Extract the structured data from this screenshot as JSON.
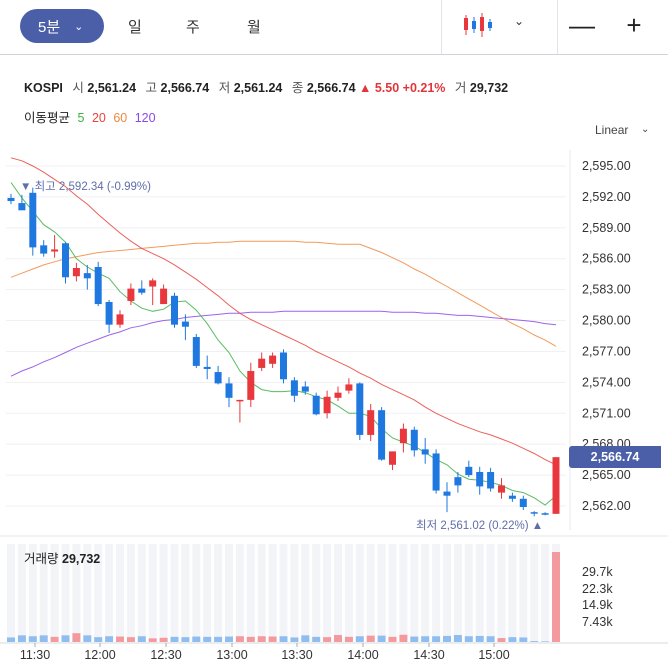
{
  "toolbar": {
    "interval_label": "5분",
    "tabs": [
      "일",
      "주",
      "월"
    ],
    "chart_type_icon": "candlestick-icon",
    "minus_label": "—",
    "plus_label": "+"
  },
  "quote": {
    "symbol": "KOSPI",
    "open_label": "시",
    "open": "2,561.24",
    "high_label": "고",
    "high": "2,566.74",
    "low_label": "저",
    "low": "2,561.24",
    "close_label": "종",
    "close": "2,566.74",
    "change": "▲ 5.50 +0.21%",
    "volume_label": "거",
    "volume": "29,732"
  },
  "moving_average": {
    "label": "이동평균",
    "periods": [
      {
        "period": "5",
        "color": "#3cb043"
      },
      {
        "period": "20",
        "color": "#e8453c"
      },
      {
        "period": "60",
        "color": "#f0883e"
      },
      {
        "period": "120",
        "color": "#8b48e8"
      }
    ]
  },
  "scale_label": "Linear",
  "annotations": {
    "high": "최고 2,592.34 (-0.99%)",
    "low": "최저 2,561.02 (0.22%)"
  },
  "current_price_tag": "2,566.74",
  "volume_panel": {
    "label": "거래량",
    "value": "29,732"
  },
  "colors": {
    "up": "#e8383d",
    "down": "#1f78e0",
    "accent": "#4b5fa8"
  },
  "chart_data": {
    "type": "candlestick",
    "y_ticks": [
      "2,595.00",
      "2,592.00",
      "2,589.00",
      "2,586.00",
      "2,583.00",
      "2,580.00",
      "2,577.00",
      "2,574.00",
      "2,571.00",
      "2,568.00",
      "2,565.00",
      "2,562.00"
    ],
    "x_ticks": [
      "11:30",
      "12:00",
      "12:30",
      "13:00",
      "13:30",
      "14:00",
      "14:30",
      "15:00"
    ],
    "ylim": [
      2560.9,
      2596.5
    ],
    "volume_ticks": [
      "29.7k",
      "22.3k",
      "14.9k",
      "7.43k"
    ],
    "candles": [
      {
        "o": 2591.9,
        "h": 2592.3,
        "l": 2591.3,
        "c": 2591.6
      },
      {
        "o": 2591.4,
        "h": 2592.2,
        "l": 2590.8,
        "c": 2590.7
      },
      {
        "o": 2592.4,
        "h": 2592.9,
        "l": 2586.3,
        "c": 2587.1
      },
      {
        "o": 2587.3,
        "h": 2587.8,
        "l": 2586.2,
        "c": 2586.5
      },
      {
        "o": 2586.7,
        "h": 2588.3,
        "l": 2586.1,
        "c": 2586.9
      },
      {
        "o": 2587.5,
        "h": 2587.6,
        "l": 2583.6,
        "c": 2584.2
      },
      {
        "o": 2584.3,
        "h": 2585.6,
        "l": 2583.8,
        "c": 2585.1
      },
      {
        "o": 2584.6,
        "h": 2585.4,
        "l": 2583.0,
        "c": 2584.1
      },
      {
        "o": 2585.2,
        "h": 2585.7,
        "l": 2581.4,
        "c": 2581.6
      },
      {
        "o": 2581.8,
        "h": 2582.0,
        "l": 2578.8,
        "c": 2579.6
      },
      {
        "o": 2579.6,
        "h": 2581.0,
        "l": 2579.3,
        "c": 2580.6
      },
      {
        "o": 2581.9,
        "h": 2583.6,
        "l": 2581.5,
        "c": 2583.1
      },
      {
        "o": 2583.1,
        "h": 2583.9,
        "l": 2582.5,
        "c": 2582.7
      },
      {
        "o": 2583.3,
        "h": 2584.1,
        "l": 2581.5,
        "c": 2583.9
      },
      {
        "o": 2581.6,
        "h": 2583.5,
        "l": 2581.6,
        "c": 2583.1
      },
      {
        "o": 2582.4,
        "h": 2582.7,
        "l": 2579.3,
        "c": 2579.6
      },
      {
        "o": 2579.9,
        "h": 2580.6,
        "l": 2578.1,
        "c": 2579.4
      },
      {
        "o": 2578.4,
        "h": 2578.7,
        "l": 2575.4,
        "c": 2575.6
      },
      {
        "o": 2575.5,
        "h": 2576.6,
        "l": 2574.3,
        "c": 2575.3
      },
      {
        "o": 2575.0,
        "h": 2575.6,
        "l": 2573.8,
        "c": 2573.9
      },
      {
        "o": 2573.9,
        "h": 2574.5,
        "l": 2571.6,
        "c": 2572.5
      },
      {
        "o": 2572.2,
        "h": 2572.3,
        "l": 2570.1,
        "c": 2572.3
      },
      {
        "o": 2572.3,
        "h": 2575.9,
        "l": 2571.6,
        "c": 2575.1
      },
      {
        "o": 2575.4,
        "h": 2576.9,
        "l": 2575.1,
        "c": 2576.3
      },
      {
        "o": 2575.8,
        "h": 2576.9,
        "l": 2575.4,
        "c": 2576.6
      },
      {
        "o": 2576.9,
        "h": 2577.2,
        "l": 2573.9,
        "c": 2574.3
      },
      {
        "o": 2574.2,
        "h": 2574.5,
        "l": 2572.1,
        "c": 2572.7
      },
      {
        "o": 2573.6,
        "h": 2574.1,
        "l": 2572.8,
        "c": 2573.1
      },
      {
        "o": 2572.7,
        "h": 2573.0,
        "l": 2570.8,
        "c": 2570.9
      },
      {
        "o": 2571.0,
        "h": 2573.2,
        "l": 2570.5,
        "c": 2572.6
      },
      {
        "o": 2572.5,
        "h": 2573.6,
        "l": 2572.2,
        "c": 2573.0
      },
      {
        "o": 2573.2,
        "h": 2574.4,
        "l": 2572.9,
        "c": 2573.8
      },
      {
        "o": 2573.9,
        "h": 2574.0,
        "l": 2568.4,
        "c": 2568.9
      },
      {
        "o": 2568.9,
        "h": 2571.9,
        "l": 2568.3,
        "c": 2571.3
      },
      {
        "o": 2571.3,
        "h": 2571.6,
        "l": 2566.4,
        "c": 2566.5
      },
      {
        "o": 2566.0,
        "h": 2567.3,
        "l": 2565.5,
        "c": 2567.3
      },
      {
        "o": 2568.1,
        "h": 2570.0,
        "l": 2567.2,
        "c": 2569.5
      },
      {
        "o": 2569.4,
        "h": 2569.7,
        "l": 2566.8,
        "c": 2567.4
      },
      {
        "o": 2567.5,
        "h": 2568.6,
        "l": 2566.1,
        "c": 2567.0
      },
      {
        "o": 2567.1,
        "h": 2567.5,
        "l": 2563.2,
        "c": 2563.5
      },
      {
        "o": 2563.4,
        "h": 2564.3,
        "l": 2561.4,
        "c": 2563.0
      },
      {
        "o": 2564.8,
        "h": 2565.3,
        "l": 2563.3,
        "c": 2564.0
      },
      {
        "o": 2565.8,
        "h": 2566.4,
        "l": 2564.8,
        "c": 2565.0
      },
      {
        "o": 2565.3,
        "h": 2565.8,
        "l": 2563.1,
        "c": 2563.9
      },
      {
        "o": 2565.3,
        "h": 2565.7,
        "l": 2563.4,
        "c": 2563.7
      },
      {
        "o": 2563.3,
        "h": 2564.7,
        "l": 2562.7,
        "c": 2564.0
      },
      {
        "o": 2563.0,
        "h": 2563.3,
        "l": 2562.4,
        "c": 2562.7
      },
      {
        "o": 2562.7,
        "h": 2563.0,
        "l": 2561.6,
        "c": 2561.9
      },
      {
        "o": 2561.4,
        "h": 2561.5,
        "l": 2561.0,
        "c": 2561.3
      },
      {
        "o": 2561.3,
        "h": 2561.4,
        "l": 2561.1,
        "c": 2561.2
      },
      {
        "o": 2561.24,
        "h": 2566.74,
        "l": 2561.24,
        "c": 2566.74
      }
    ],
    "volumes_k": [
      1.5,
      2.2,
      1.9,
      2.2,
      1.7,
      2.2,
      2.9,
      2.2,
      1.6,
      1.9,
      1.8,
      1.6,
      1.9,
      1.2,
      1.4,
      1.7,
      1.6,
      1.8,
      1.7,
      1.7,
      1.8,
      1.9,
      1.7,
      1.9,
      1.8,
      1.9,
      1.5,
      2.2,
      1.7,
      1.6,
      2.3,
      1.7,
      1.9,
      2.1,
      2.1,
      1.7,
      2.4,
      1.8,
      1.9,
      1.9,
      2.0,
      2.3,
      1.9,
      2.0,
      1.9,
      1.3,
      1.6,
      1.5,
      0.3,
      0.2,
      29.7
    ],
    "ma5": [
      2593.4,
      2591.9,
      2590.6,
      2589.3,
      2588.6,
      2587.6,
      2586.0,
      2585.2,
      2584.6,
      2584.1,
      2582.8,
      2581.9,
      2581.2,
      2580.9,
      2581.1,
      2581.8,
      2581.9,
      2581.0,
      2579.7,
      2578.1,
      2576.9,
      2575.1,
      2574.0,
      2573.3,
      2573.1,
      2573.1,
      2573.2,
      2573.0,
      2572.6,
      2572.3,
      2571.7,
      2571.0,
      2571.0,
      2570.7,
      2569.5,
      2568.6,
      2568.2,
      2567.8,
      2567.2,
      2566.5,
      2566.0,
      2565.1,
      2564.6,
      2564.5,
      2564.3,
      2564.0,
      2563.5,
      2563.3,
      2562.8,
      2562.1,
      2563.0
    ],
    "ma20": [
      2595.8,
      2595.5,
      2595.0,
      2594.4,
      2593.7,
      2593.0,
      2592.1,
      2591.3,
      2590.3,
      2589.4,
      2588.5,
      2587.7,
      2587.0,
      2586.5,
      2586.0,
      2585.4,
      2584.7,
      2584.0,
      2583.2,
      2582.4,
      2581.5,
      2580.7,
      2580.1,
      2579.6,
      2579.1,
      2578.6,
      2578.1,
      2577.6,
      2577.0,
      2576.5,
      2576.0,
      2575.5,
      2574.9,
      2574.4,
      2573.8,
      2573.3,
      2572.8,
      2572.3,
      2571.6,
      2571.0,
      2570.5,
      2570.0,
      2569.6,
      2569.2,
      2568.9,
      2568.5,
      2568.1,
      2567.6,
      2567.1,
      2566.5,
      2566.0
    ],
    "ma60": [
      2584.2,
      2584.6,
      2585.0,
      2585.4,
      2585.7,
      2586.0,
      2586.2,
      2586.4,
      2586.6,
      2586.7,
      2586.8,
      2586.9,
      2587.0,
      2587.1,
      2587.2,
      2587.3,
      2587.4,
      2587.5,
      2587.5,
      2587.6,
      2587.6,
      2587.7,
      2587.7,
      2587.7,
      2587.7,
      2587.7,
      2587.7,
      2587.6,
      2587.6,
      2587.5,
      2587.4,
      2587.4,
      2587.4,
      2587.0,
      2586.6,
      2586.1,
      2585.6,
      2585.0,
      2584.5,
      2583.9,
      2583.3,
      2582.7,
      2582.1,
      2581.5,
      2580.9,
      2580.3,
      2579.7,
      2579.2,
      2578.6,
      2578.1,
      2577.5
    ],
    "ma120": [
      2574.6,
      2575.1,
      2575.5,
      2576.0,
      2576.4,
      2576.9,
      2577.4,
      2577.8,
      2578.2,
      2578.6,
      2578.9,
      2579.3,
      2579.5,
      2579.8,
      2580.0,
      2580.1,
      2580.3,
      2580.4,
      2580.5,
      2580.6,
      2580.7,
      2580.7,
      2580.8,
      2580.8,
      2580.8,
      2580.9,
      2580.9,
      2580.9,
      2580.9,
      2580.9,
      2580.9,
      2580.9,
      2580.9,
      2580.9,
      2580.9,
      2580.8,
      2580.8,
      2580.8,
      2580.7,
      2580.7,
      2580.6,
      2580.5,
      2580.5,
      2580.4,
      2580.3,
      2580.2,
      2580.1,
      2580.0,
      2579.9,
      2579.7,
      2579.6
    ]
  }
}
